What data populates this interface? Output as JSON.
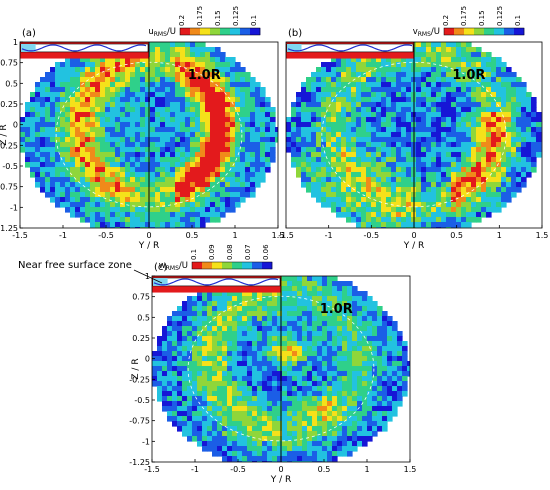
{
  "chart_data": [
    {
      "type": "heatmap",
      "panel_label": "(a)",
      "colorbar": {
        "title": "u_RMS/U",
        "ticks": [
          "0.2",
          "0.175",
          "0.15",
          "0.125",
          "0.1"
        ]
      },
      "ring_label": "1.0R",
      "xlabel": "Y / R",
      "ylabel": "Z / R",
      "xlim": [
        -1.5,
        1.5
      ],
      "ylim": [
        -1.25,
        1
      ],
      "xticks": [
        "-1.5",
        "-1",
        "-0.5",
        "0",
        "0.5",
        "1",
        "1.5"
      ],
      "yticks": [
        "1",
        "0.75",
        "0.5",
        "0.25",
        "0",
        "-0.25",
        "-0.5",
        "-0.75",
        "-1",
        "-1.25"
      ],
      "grid": false
    },
    {
      "type": "heatmap",
      "panel_label": "(b)",
      "colorbar": {
        "title": "v_RMS/U",
        "ticks": [
          "0.2",
          "0.175",
          "0.15",
          "0.125",
          "0.1"
        ]
      },
      "ring_label": "1.0R",
      "xlabel": "Y / R",
      "ylabel": "",
      "xlim": [
        -1.5,
        1.5
      ],
      "ylim": [
        -1.25,
        1
      ],
      "xticks": [
        "-1.5",
        "-1",
        "-0.5",
        "0",
        "0.5",
        "1",
        "1.5"
      ],
      "yticks": [],
      "grid": false
    },
    {
      "type": "heatmap",
      "panel_label": "(c)",
      "colorbar": {
        "title": "w_RMS/U",
        "ticks": [
          "0.1",
          "0.09",
          "0.08",
          "0.07",
          "0.06"
        ]
      },
      "ring_label": "1.0R",
      "xlabel": "Y / R",
      "ylabel": "Z / R",
      "xlim": [
        -1.5,
        1.5
      ],
      "ylim": [
        -1.25,
        1
      ],
      "xticks": [
        "-1.5",
        "-1",
        "-0.5",
        "0",
        "0.5",
        "1",
        "1.5"
      ],
      "yticks": [
        "1",
        "0.75",
        "0.5",
        "0.25",
        "0",
        "-0.25",
        "-0.5",
        "-0.75",
        "-1",
        "-1.25"
      ],
      "grid": false
    }
  ],
  "annotation": {
    "text": "Near free surface zone"
  },
  "colorscale": [
    "#e31a1c",
    "#f08a1a",
    "#f5e11a",
    "#8fd63a",
    "#2fd08a",
    "#22c2e0",
    "#1b5ee6",
    "#1616d6"
  ]
}
